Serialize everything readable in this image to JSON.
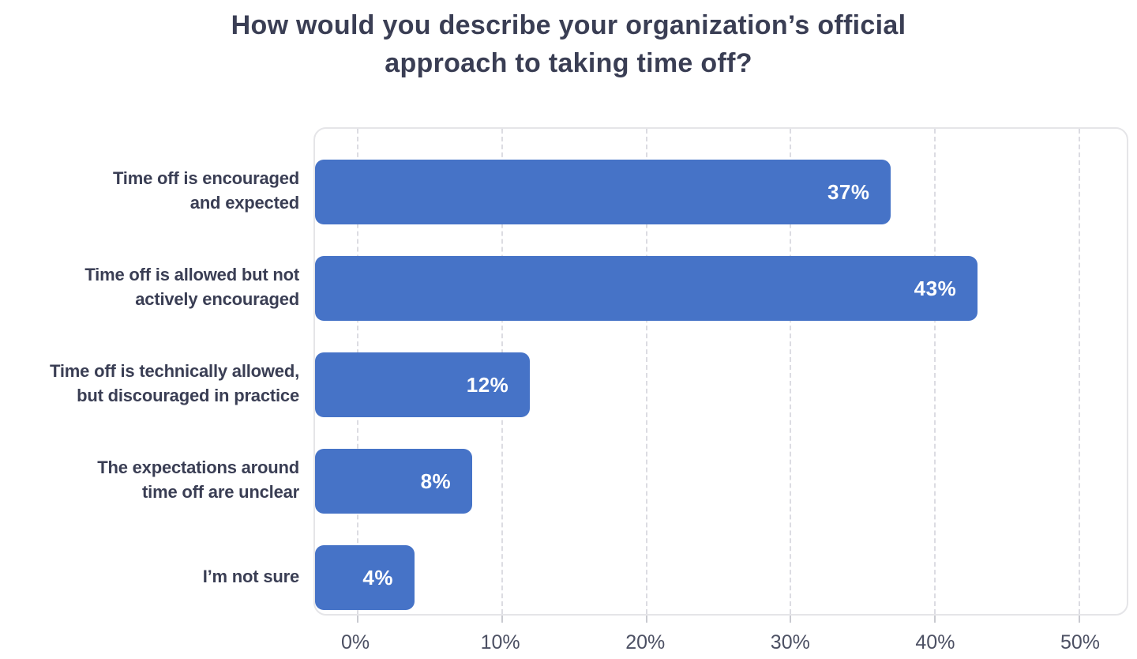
{
  "title": {
    "line1": "How would you describe your organization’s official",
    "line2": "approach to taking time off?"
  },
  "chart_data": {
    "type": "bar",
    "orientation": "horizontal",
    "title": "How would you describe your organization’s official approach to taking time off?",
    "categories": [
      "Time off is encouraged\nand expected",
      "Time off is allowed but not\nactively encouraged",
      "Time off is technically allowed,\nbut discouraged in practice",
      "The expectations around\ntime off are unclear",
      "I’m not sure"
    ],
    "values": [
      37,
      43,
      12,
      8,
      4
    ],
    "value_labels": [
      "37%",
      "43%",
      "12%",
      "8%",
      "4%"
    ],
    "x_ticks": [
      "0%",
      "10%",
      "20%",
      "30%",
      "40%",
      "50%"
    ],
    "xlim": [
      0,
      50
    ],
    "grid": "vertical-dashed",
    "legend": "none",
    "bar_color": "#4673C7",
    "value_label_color": "#FFFFFF",
    "category_label_color": "#3A3E54",
    "axis_label_color": "#4C5063",
    "frame_color": "#E5E5E8"
  }
}
